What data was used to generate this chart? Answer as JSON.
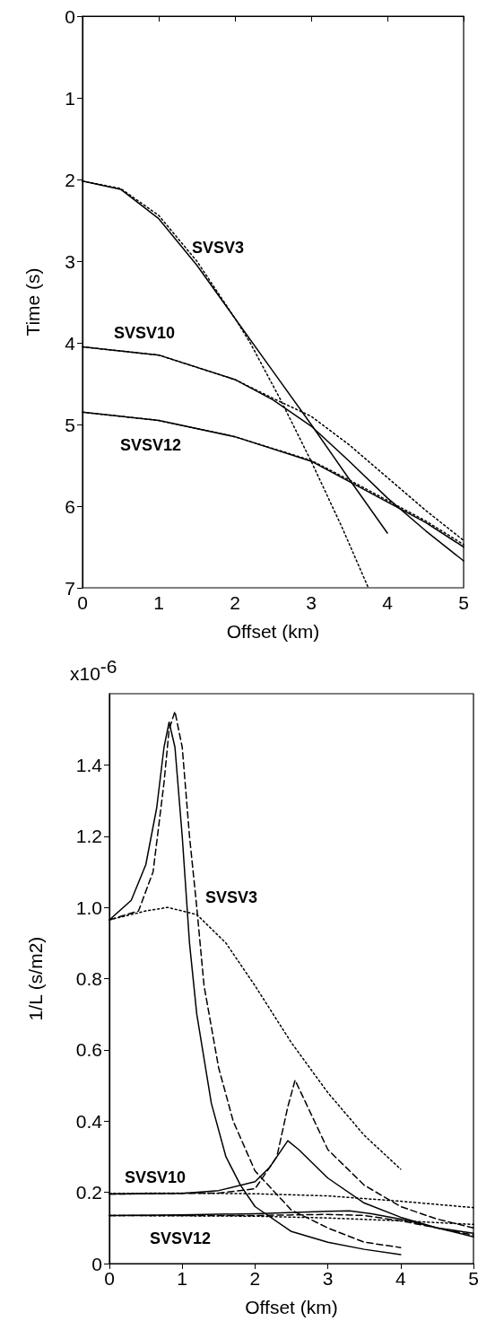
{
  "chart_data": [
    {
      "type": "line",
      "xlabel": "Offset (km)",
      "ylabel": "Time (s)",
      "xlim": [
        0,
        5
      ],
      "xticks": [
        0,
        1,
        2,
        3,
        4,
        5
      ],
      "ylim": [
        7,
        0
      ],
      "yticks": [
        0,
        1,
        2,
        3,
        4,
        5,
        6,
        7
      ],
      "marker": "none",
      "annotations": [
        "SVSV3",
        "SVSV10",
        "SVSV12"
      ],
      "series": [
        {
          "color": "#000000",
          "line_style": "solid",
          "x": [
            0,
            0.5,
            1,
            1.5,
            2,
            2.5,
            3,
            3.5,
            4
          ],
          "values": [
            2.02,
            2.12,
            2.48,
            3.05,
            3.7,
            4.35,
            5.0,
            5.67,
            6.33
          ]
        },
        {
          "color": "#000000",
          "line_style": "dotted",
          "x": [
            0,
            0.5,
            1,
            1.5,
            2,
            2.2,
            2.6,
            3,
            3.4,
            3.75
          ],
          "values": [
            2.02,
            2.11,
            2.44,
            3.0,
            3.7,
            4.0,
            4.7,
            5.45,
            6.25,
            7.0
          ]
        },
        {
          "color": "#000000",
          "line_style": "solid",
          "x": [
            0,
            1,
            2,
            2.5,
            3,
            3.5,
            4,
            4.5,
            5
          ],
          "values": [
            4.05,
            4.15,
            4.45,
            4.7,
            5.02,
            5.45,
            5.9,
            6.3,
            6.67
          ]
        },
        {
          "color": "#000000",
          "line_style": "dotted",
          "x": [
            0,
            1,
            2,
            2.5,
            3,
            3.5,
            4,
            4.5,
            5
          ],
          "values": [
            4.05,
            4.15,
            4.45,
            4.68,
            4.9,
            5.25,
            5.65,
            6.05,
            6.42
          ]
        },
        {
          "color": "#000000",
          "line_style": "solid",
          "x": [
            0,
            1,
            2,
            3,
            3.5,
            4,
            4.5,
            5
          ],
          "values": [
            4.85,
            4.95,
            5.15,
            5.45,
            5.7,
            5.95,
            6.2,
            6.5
          ]
        },
        {
          "color": "#000000",
          "line_style": "dotted",
          "x": [
            0,
            1,
            2,
            3,
            3.5,
            4,
            4.5,
            5
          ],
          "values": [
            4.85,
            4.95,
            5.15,
            5.44,
            5.68,
            5.93,
            6.18,
            6.47
          ]
        }
      ]
    },
    {
      "type": "line",
      "xlabel": "Offset (km)",
      "ylabel": "1/L (s/m2)",
      "xlim": [
        0,
        5
      ],
      "xticks": [
        0,
        1,
        2,
        3,
        4,
        5
      ],
      "ylim": [
        0,
        1.6
      ],
      "yticks": [
        0,
        {
          "value": 0.2,
          "label": "0.2"
        },
        {
          "value": 0.4,
          "label": "0.4"
        },
        {
          "value": 0.6,
          "label": "0.6"
        },
        {
          "value": 0.8,
          "label": "0.8"
        },
        {
          "value": 1,
          "label": "1.0"
        },
        {
          "value": 1.2,
          "label": "1.2"
        },
        {
          "value": 1.4,
          "label": "1.4"
        }
      ],
      "marker": "none",
      "annotations": [
        "x10$^{-6}$",
        "SVSV3",
        "SVSV10",
        "SVSV12"
      ],
      "series": [
        {
          "color": "#000000",
          "line_style": "solid",
          "x": [
            0,
            0.3,
            0.5,
            0.65,
            0.75,
            0.82,
            0.9,
            1.0,
            1.1,
            1.2,
            1.4,
            1.6,
            1.8,
            2.0,
            2.5,
            3,
            3.5,
            4
          ],
          "values": [
            0.965,
            1.02,
            1.12,
            1.28,
            1.45,
            1.52,
            1.45,
            1.2,
            0.9,
            0.7,
            0.45,
            0.3,
            0.22,
            0.16,
            0.09,
            0.06,
            0.04,
            0.025
          ]
        },
        {
          "color": "#000000",
          "line_style": "dashed",
          "x": [
            0,
            0.4,
            0.6,
            0.75,
            0.82,
            0.9,
            1.0,
            1.1,
            1.2,
            1.3,
            1.5,
            1.7,
            2.0,
            2.5,
            3,
            3.5,
            4
          ],
          "values": [
            0.965,
            0.99,
            1.1,
            1.35,
            1.5,
            1.55,
            1.45,
            1.2,
            1.0,
            0.78,
            0.55,
            0.4,
            0.26,
            0.15,
            0.1,
            0.06,
            0.045
          ]
        },
        {
          "color": "#000000",
          "line_style": "dotted",
          "x": [
            0,
            0.5,
            0.8,
            1.2,
            1.6,
            2.0,
            2.5,
            3.0,
            3.5,
            4.0
          ],
          "values": [
            0.965,
            0.99,
            1.0,
            0.98,
            0.9,
            0.78,
            0.62,
            0.48,
            0.36,
            0.265
          ]
        },
        {
          "color": "#000000",
          "line_style": "solid",
          "x": [
            0,
            1,
            1.5,
            2,
            2.2,
            2.45,
            2.6,
            3,
            3.5,
            4,
            4.5,
            5
          ],
          "values": [
            0.195,
            0.197,
            0.205,
            0.23,
            0.27,
            0.345,
            0.32,
            0.24,
            0.17,
            0.13,
            0.1,
            0.075
          ]
        },
        {
          "color": "#000000",
          "line_style": "dashed",
          "x": [
            0,
            1.5,
            2,
            2.3,
            2.45,
            2.55,
            2.7,
            3,
            3.5,
            4,
            4.5,
            5
          ],
          "values": [
            0.195,
            0.198,
            0.21,
            0.3,
            0.44,
            0.515,
            0.45,
            0.32,
            0.22,
            0.16,
            0.125,
            0.1
          ]
        },
        {
          "color": "#000000",
          "line_style": "dotted",
          "x": [
            0,
            1,
            2,
            3,
            4,
            5
          ],
          "values": [
            0.197,
            0.198,
            0.196,
            0.19,
            0.175,
            0.157
          ]
        },
        {
          "color": "#000000",
          "line_style": "solid",
          "x": [
            0,
            1,
            2,
            3,
            3.3,
            3.6,
            4,
            4.5,
            5
          ],
          "values": [
            0.135,
            0.137,
            0.14,
            0.147,
            0.148,
            0.14,
            0.125,
            0.1,
            0.085
          ]
        },
        {
          "color": "#000000",
          "line_style": "dashed",
          "x": [
            0,
            2,
            3,
            3.5,
            4,
            5
          ],
          "values": [
            0.135,
            0.135,
            0.138,
            0.135,
            0.12,
            0.08
          ]
        },
        {
          "color": "#000000",
          "line_style": "dotted",
          "x": [
            0,
            2,
            3,
            4,
            5
          ],
          "values": [
            0.135,
            0.133,
            0.128,
            0.12,
            0.11
          ]
        }
      ]
    }
  ]
}
